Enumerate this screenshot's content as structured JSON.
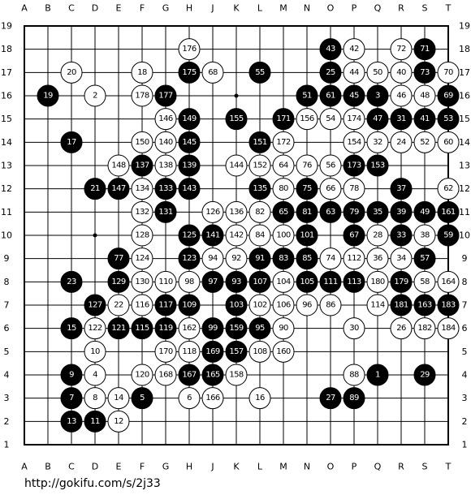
{
  "board": {
    "columns": [
      "A",
      "B",
      "C",
      "D",
      "E",
      "F",
      "G",
      "H",
      "J",
      "K",
      "L",
      "M",
      "N",
      "O",
      "P",
      "Q",
      "R",
      "S",
      "T"
    ],
    "rows": [
      19,
      18,
      17,
      16,
      15,
      14,
      13,
      12,
      11,
      10,
      9,
      8,
      7,
      6,
      5,
      4,
      3,
      2,
      1
    ],
    "stones": [
      {
        "col": "H",
        "row": 18,
        "color": "white",
        "number": 176
      },
      {
        "col": "O",
        "row": 18,
        "color": "black",
        "number": 43
      },
      {
        "col": "P",
        "row": 18,
        "color": "white",
        "number": 42
      },
      {
        "col": "R",
        "row": 18,
        "color": "white",
        "number": 72
      },
      {
        "col": "S",
        "row": 18,
        "color": "black",
        "number": 71
      },
      {
        "col": "C",
        "row": 17,
        "color": "white",
        "number": 20
      },
      {
        "col": "F",
        "row": 17,
        "color": "white",
        "number": 18
      },
      {
        "col": "H",
        "row": 17,
        "color": "black",
        "number": 175
      },
      {
        "col": "J",
        "row": 17,
        "color": "white",
        "number": 68
      },
      {
        "col": "L",
        "row": 17,
        "color": "black",
        "number": 55
      },
      {
        "col": "O",
        "row": 17,
        "color": "black",
        "number": 25
      },
      {
        "col": "P",
        "row": 17,
        "color": "white",
        "number": 44
      },
      {
        "col": "Q",
        "row": 17,
        "color": "white",
        "number": 50
      },
      {
        "col": "R",
        "row": 17,
        "color": "white",
        "number": 40
      },
      {
        "col": "S",
        "row": 17,
        "color": "black",
        "number": 73
      },
      {
        "col": "T",
        "row": 17,
        "color": "white",
        "number": 70
      },
      {
        "col": "B",
        "row": 16,
        "color": "black",
        "number": 19
      },
      {
        "col": "D",
        "row": 16,
        "color": "white",
        "number": 2
      },
      {
        "col": "F",
        "row": 16,
        "color": "white",
        "number": 178
      },
      {
        "col": "G",
        "row": 16,
        "color": "black",
        "number": 177
      },
      {
        "col": "N",
        "row": 16,
        "color": "black",
        "number": 51
      },
      {
        "col": "O",
        "row": 16,
        "color": "black",
        "number": 61
      },
      {
        "col": "P",
        "row": 16,
        "color": "black",
        "number": 45
      },
      {
        "col": "Q",
        "row": 16,
        "color": "black",
        "number": 3
      },
      {
        "col": "R",
        "row": 16,
        "color": "white",
        "number": 46
      },
      {
        "col": "S",
        "row": 16,
        "color": "white",
        "number": 48
      },
      {
        "col": "T",
        "row": 16,
        "color": "black",
        "number": 69
      },
      {
        "col": "G",
        "row": 15,
        "color": "white",
        "number": 146
      },
      {
        "col": "H",
        "row": 15,
        "color": "black",
        "number": 149
      },
      {
        "col": "K",
        "row": 15,
        "color": "black",
        "number": 155
      },
      {
        "col": "M",
        "row": 15,
        "color": "black",
        "number": 171
      },
      {
        "col": "N",
        "row": 15,
        "color": "white",
        "number": 156
      },
      {
        "col": "O",
        "row": 15,
        "color": "white",
        "number": 54
      },
      {
        "col": "P",
        "row": 15,
        "color": "white",
        "number": 174
      },
      {
        "col": "Q",
        "row": 15,
        "color": "black",
        "number": 47
      },
      {
        "col": "R",
        "row": 15,
        "color": "black",
        "number": 31
      },
      {
        "col": "S",
        "row": 15,
        "color": "black",
        "number": 41
      },
      {
        "col": "T",
        "row": 15,
        "color": "black",
        "number": 53
      },
      {
        "col": "C",
        "row": 14,
        "color": "black",
        "number": 17
      },
      {
        "col": "F",
        "row": 14,
        "color": "white",
        "number": 150
      },
      {
        "col": "G",
        "row": 14,
        "color": "white",
        "number": 140
      },
      {
        "col": "H",
        "row": 14,
        "color": "black",
        "number": 145
      },
      {
        "col": "L",
        "row": 14,
        "color": "black",
        "number": 151
      },
      {
        "col": "M",
        "row": 14,
        "color": "white",
        "number": 172
      },
      {
        "col": "P",
        "row": 14,
        "color": "white",
        "number": 154
      },
      {
        "col": "Q",
        "row": 14,
        "color": "white",
        "number": 32
      },
      {
        "col": "R",
        "row": 14,
        "color": "white",
        "number": 24
      },
      {
        "col": "S",
        "row": 14,
        "color": "white",
        "number": 52
      },
      {
        "col": "T",
        "row": 14,
        "color": "white",
        "number": 60
      },
      {
        "col": "E",
        "row": 13,
        "color": "white",
        "number": 148
      },
      {
        "col": "F",
        "row": 13,
        "color": "black",
        "number": 137
      },
      {
        "col": "G",
        "row": 13,
        "color": "white",
        "number": 138
      },
      {
        "col": "H",
        "row": 13,
        "color": "black",
        "number": 139
      },
      {
        "col": "K",
        "row": 13,
        "color": "white",
        "number": 144
      },
      {
        "col": "L",
        "row": 13,
        "color": "white",
        "number": 152
      },
      {
        "col": "M",
        "row": 13,
        "color": "white",
        "number": 64
      },
      {
        "col": "N",
        "row": 13,
        "color": "white",
        "number": 76
      },
      {
        "col": "O",
        "row": 13,
        "color": "white",
        "number": 56
      },
      {
        "col": "P",
        "row": 13,
        "color": "black",
        "number": 173
      },
      {
        "col": "Q",
        "row": 13,
        "color": "black",
        "number": 153
      },
      {
        "col": "D",
        "row": 12,
        "color": "black",
        "number": 21
      },
      {
        "col": "E",
        "row": 12,
        "color": "black",
        "number": 147
      },
      {
        "col": "F",
        "row": 12,
        "color": "white",
        "number": 134
      },
      {
        "col": "G",
        "row": 12,
        "color": "black",
        "number": 133
      },
      {
        "col": "H",
        "row": 12,
        "color": "black",
        "number": 143
      },
      {
        "col": "L",
        "row": 12,
        "color": "black",
        "number": 135
      },
      {
        "col": "M",
        "row": 12,
        "color": "white",
        "number": 80
      },
      {
        "col": "N",
        "row": 12,
        "color": "black",
        "number": 75
      },
      {
        "col": "O",
        "row": 12,
        "color": "white",
        "number": 66
      },
      {
        "col": "P",
        "row": 12,
        "color": "white",
        "number": 78
      },
      {
        "col": "R",
        "row": 12,
        "color": "black",
        "number": 37
      },
      {
        "col": "T",
        "row": 12,
        "color": "white",
        "number": 62
      },
      {
        "col": "F",
        "row": 11,
        "color": "white",
        "number": 132
      },
      {
        "col": "G",
        "row": 11,
        "color": "black",
        "number": 131
      },
      {
        "col": "J",
        "row": 11,
        "color": "white",
        "number": 126
      },
      {
        "col": "K",
        "row": 11,
        "color": "white",
        "number": 136
      },
      {
        "col": "L",
        "row": 11,
        "color": "white",
        "number": 82
      },
      {
        "col": "M",
        "row": 11,
        "color": "black",
        "number": 65
      },
      {
        "col": "N",
        "row": 11,
        "color": "black",
        "number": 81
      },
      {
        "col": "O",
        "row": 11,
        "color": "black",
        "number": 63
      },
      {
        "col": "P",
        "row": 11,
        "color": "black",
        "number": 79
      },
      {
        "col": "Q",
        "row": 11,
        "color": "black",
        "number": 35
      },
      {
        "col": "R",
        "row": 11,
        "color": "black",
        "number": 39
      },
      {
        "col": "S",
        "row": 11,
        "color": "black",
        "number": 49
      },
      {
        "col": "T",
        "row": 11,
        "color": "black",
        "number": 161
      },
      {
        "col": "F",
        "row": 10,
        "color": "white",
        "number": 128
      },
      {
        "col": "H",
        "row": 10,
        "color": "black",
        "number": 125
      },
      {
        "col": "J",
        "row": 10,
        "color": "black",
        "number": 141
      },
      {
        "col": "K",
        "row": 10,
        "color": "white",
        "number": 142
      },
      {
        "col": "L",
        "row": 10,
        "color": "white",
        "number": 84
      },
      {
        "col": "M",
        "row": 10,
        "color": "white",
        "number": 100
      },
      {
        "col": "N",
        "row": 10,
        "color": "black",
        "number": 101
      },
      {
        "col": "P",
        "row": 10,
        "color": "black",
        "number": 67
      },
      {
        "col": "Q",
        "row": 10,
        "color": "white",
        "number": 28
      },
      {
        "col": "R",
        "row": 10,
        "color": "black",
        "number": 33
      },
      {
        "col": "S",
        "row": 10,
        "color": "white",
        "number": 38
      },
      {
        "col": "T",
        "row": 10,
        "color": "black",
        "number": 59
      },
      {
        "col": "E",
        "row": 9,
        "color": "black",
        "number": 77
      },
      {
        "col": "F",
        "row": 9,
        "color": "white",
        "number": 124
      },
      {
        "col": "H",
        "row": 9,
        "color": "black",
        "number": 123
      },
      {
        "col": "J",
        "row": 9,
        "color": "white",
        "number": 94
      },
      {
        "col": "K",
        "row": 9,
        "color": "white",
        "number": 92
      },
      {
        "col": "L",
        "row": 9,
        "color": "black",
        "number": 91
      },
      {
        "col": "M",
        "row": 9,
        "color": "black",
        "number": 83
      },
      {
        "col": "N",
        "row": 9,
        "color": "black",
        "number": 85
      },
      {
        "col": "O",
        "row": 9,
        "color": "white",
        "number": 74
      },
      {
        "col": "P",
        "row": 9,
        "color": "white",
        "number": 112
      },
      {
        "col": "Q",
        "row": 9,
        "color": "white",
        "number": 36
      },
      {
        "col": "R",
        "row": 9,
        "color": "white",
        "number": 34
      },
      {
        "col": "S",
        "row": 9,
        "color": "black",
        "number": 57
      },
      {
        "col": "C",
        "row": 8,
        "color": "black",
        "number": 23
      },
      {
        "col": "E",
        "row": 8,
        "color": "black",
        "number": 129
      },
      {
        "col": "F",
        "row": 8,
        "color": "white",
        "number": 130
      },
      {
        "col": "G",
        "row": 8,
        "color": "white",
        "number": 110
      },
      {
        "col": "H",
        "row": 8,
        "color": "white",
        "number": 98
      },
      {
        "col": "J",
        "row": 8,
        "color": "black",
        "number": 97
      },
      {
        "col": "K",
        "row": 8,
        "color": "black",
        "number": 93
      },
      {
        "col": "L",
        "row": 8,
        "color": "black",
        "number": 107
      },
      {
        "col": "M",
        "row": 8,
        "color": "white",
        "number": 104
      },
      {
        "col": "N",
        "row": 8,
        "color": "black",
        "number": 105
      },
      {
        "col": "O",
        "row": 8,
        "color": "black",
        "number": 111
      },
      {
        "col": "P",
        "row": 8,
        "color": "black",
        "number": 113
      },
      {
        "col": "Q",
        "row": 8,
        "color": "white",
        "number": 180
      },
      {
        "col": "R",
        "row": 8,
        "color": "black",
        "number": 179
      },
      {
        "col": "S",
        "row": 8,
        "color": "white",
        "number": 58
      },
      {
        "col": "T",
        "row": 8,
        "color": "white",
        "number": 164
      },
      {
        "col": "D",
        "row": 7,
        "color": "black",
        "number": 127
      },
      {
        "col": "E",
        "row": 7,
        "color": "white",
        "number": 22
      },
      {
        "col": "F",
        "row": 7,
        "color": "white",
        "number": 116
      },
      {
        "col": "G",
        "row": 7,
        "color": "black",
        "number": 117
      },
      {
        "col": "H",
        "row": 7,
        "color": "black",
        "number": 109
      },
      {
        "col": "K",
        "row": 7,
        "color": "black",
        "number": 103
      },
      {
        "col": "L",
        "row": 7,
        "color": "white",
        "number": 102
      },
      {
        "col": "M",
        "row": 7,
        "color": "white",
        "number": 106
      },
      {
        "col": "N",
        "row": 7,
        "color": "white",
        "number": 96
      },
      {
        "col": "O",
        "row": 7,
        "color": "white",
        "number": 86
      },
      {
        "col": "Q",
        "row": 7,
        "color": "white",
        "number": 114
      },
      {
        "col": "R",
        "row": 7,
        "color": "black",
        "number": 181
      },
      {
        "col": "S",
        "row": 7,
        "color": "black",
        "number": 163
      },
      {
        "col": "T",
        "row": 7,
        "color": "black",
        "number": 183
      },
      {
        "col": "C",
        "row": 6,
        "color": "black",
        "number": 15
      },
      {
        "col": "D",
        "row": 6,
        "color": "white",
        "number": 122
      },
      {
        "col": "E",
        "row": 6,
        "color": "black",
        "number": 121
      },
      {
        "col": "F",
        "row": 6,
        "color": "black",
        "number": 115
      },
      {
        "col": "G",
        "row": 6,
        "color": "black",
        "number": 119
      },
      {
        "col": "H",
        "row": 6,
        "color": "white",
        "number": 162
      },
      {
        "col": "J",
        "row": 6,
        "color": "black",
        "number": 99
      },
      {
        "col": "K",
        "row": 6,
        "color": "black",
        "number": 159
      },
      {
        "col": "L",
        "row": 6,
        "color": "black",
        "number": 95
      },
      {
        "col": "M",
        "row": 6,
        "color": "white",
        "number": 90
      },
      {
        "col": "P",
        "row": 6,
        "color": "white",
        "number": 30
      },
      {
        "col": "R",
        "row": 6,
        "color": "white",
        "number": 26
      },
      {
        "col": "S",
        "row": 6,
        "color": "white",
        "number": 182
      },
      {
        "col": "T",
        "row": 6,
        "color": "white",
        "number": 184
      },
      {
        "col": "D",
        "row": 5,
        "color": "white",
        "number": 10
      },
      {
        "col": "G",
        "row": 5,
        "color": "white",
        "number": 170
      },
      {
        "col": "H",
        "row": 5,
        "color": "white",
        "number": 118
      },
      {
        "col": "J",
        "row": 5,
        "color": "black",
        "number": 169
      },
      {
        "col": "K",
        "row": 5,
        "color": "black",
        "number": 157
      },
      {
        "col": "L",
        "row": 5,
        "color": "white",
        "number": 108
      },
      {
        "col": "M",
        "row": 5,
        "color": "white",
        "number": 160
      },
      {
        "col": "C",
        "row": 4,
        "color": "black",
        "number": 9
      },
      {
        "col": "D",
        "row": 4,
        "color": "white",
        "number": 4
      },
      {
        "col": "F",
        "row": 4,
        "color": "white",
        "number": 120
      },
      {
        "col": "G",
        "row": 4,
        "color": "white",
        "number": 168
      },
      {
        "col": "H",
        "row": 4,
        "color": "black",
        "number": 167
      },
      {
        "col": "J",
        "row": 4,
        "color": "black",
        "number": 165
      },
      {
        "col": "K",
        "row": 4,
        "color": "white",
        "number": 158
      },
      {
        "col": "P",
        "row": 4,
        "color": "white",
        "number": 88
      },
      {
        "col": "Q",
        "row": 4,
        "color": "black",
        "number": 1
      },
      {
        "col": "S",
        "row": 4,
        "color": "black",
        "number": 29
      },
      {
        "col": "C",
        "row": 3,
        "color": "black",
        "number": 7
      },
      {
        "col": "D",
        "row": 3,
        "color": "white",
        "number": 8
      },
      {
        "col": "E",
        "row": 3,
        "color": "white",
        "number": 14
      },
      {
        "col": "F",
        "row": 3,
        "color": "black",
        "number": 5
      },
      {
        "col": "H",
        "row": 3,
        "color": "white",
        "number": 6
      },
      {
        "col": "J",
        "row": 3,
        "color": "white",
        "number": 166
      },
      {
        "col": "L",
        "row": 3,
        "color": "white",
        "number": 16
      },
      {
        "col": "O",
        "row": 3,
        "color": "black",
        "number": 27
      },
      {
        "col": "P",
        "row": 3,
        "color": "black",
        "number": 89
      },
      {
        "col": "C",
        "row": 2,
        "color": "black",
        "number": 13
      },
      {
        "col": "D",
        "row": 2,
        "color": "black",
        "number": 11
      },
      {
        "col": "E",
        "row": 2,
        "color": "white",
        "number": 12
      }
    ]
  },
  "footer": {
    "url": "http://gokifu.com/s/2j33"
  }
}
